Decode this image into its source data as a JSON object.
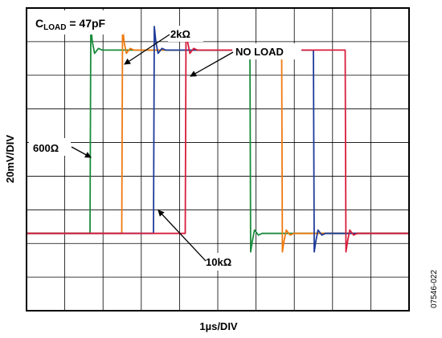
{
  "chart_data": {
    "type": "line",
    "title_prefix": "C",
    "title_sub": "LOAD",
    "title_suffix": " = 47pF",
    "xlabel": "1µs/DIV",
    "ylabel": "20mV/DIV",
    "figure_id": "07546-022",
    "grid": true,
    "x_divisions": 10,
    "y_divisions": 9,
    "xlim": [
      0,
      10
    ],
    "ylim": [
      0,
      9
    ],
    "low_level": 2.3,
    "high_level": 7.75,
    "series": [
      {
        "name": "600Ω",
        "color": "#1a8c3c",
        "rise": 1.68,
        "fall": 5.86,
        "over_up": 8.45,
        "over_dn": 1.75
      },
      {
        "name": "2kΩ",
        "color": "#f07a10",
        "rise": 2.51,
        "fall": 6.69,
        "over_up": 8.45,
        "over_dn": 1.75
      },
      {
        "name": "10kΩ",
        "color": "#1f3c99",
        "rise": 3.34,
        "fall": 7.52,
        "over_up": 8.45,
        "over_dn": 1.75
      },
      {
        "name": "NO LOAD",
        "color": "#d81e3c",
        "rise": 4.17,
        "fall": 8.35,
        "over_up": 8.45,
        "over_dn": 1.75
      }
    ],
    "annotations": [
      {
        "text": "600Ω",
        "target_series": "600Ω"
      },
      {
        "text": "2kΩ",
        "target_series": "2kΩ"
      },
      {
        "text": "NO LOAD",
        "target_series": "NO LOAD"
      },
      {
        "text": "10kΩ",
        "target_series": "10kΩ"
      }
    ]
  }
}
